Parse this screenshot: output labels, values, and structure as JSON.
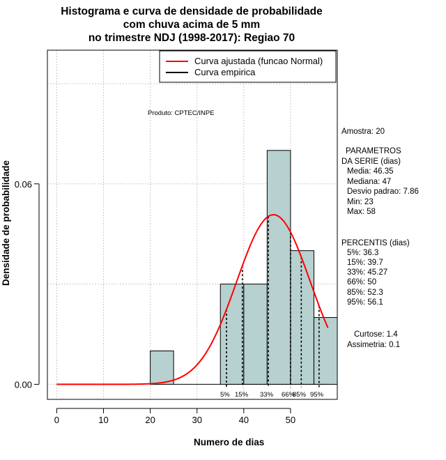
{
  "chart_data": {
    "type": "histogram",
    "title": [
      "Histograma e curva de densidade de probabilidade",
      "com chuva acima de 5 mm",
      "no trimestre NDJ (1998-2017): Regiao 70"
    ],
    "xlabel": "Numero de dias",
    "ylabel": "Densidade de probabilidade",
    "xlim": [
      -2,
      60
    ],
    "ylim": [
      -0.0045,
      0.1
    ],
    "x_ticks": [
      0,
      10,
      20,
      30,
      40,
      50
    ],
    "y_ticks": [
      0.0,
      0.06
    ],
    "y_tick_labels": [
      "0.00",
      "0.06"
    ],
    "grid": true,
    "bins": [
      {
        "from": 20,
        "to": 25,
        "density": 0.01
      },
      {
        "from": 25,
        "to": 30,
        "density": 0.0
      },
      {
        "from": 30,
        "to": 35,
        "density": 0.0
      },
      {
        "from": 35,
        "to": 40,
        "density": 0.03
      },
      {
        "from": 40,
        "to": 45,
        "density": 0.03
      },
      {
        "from": 45,
        "to": 50,
        "density": 0.07
      },
      {
        "from": 50,
        "to": 55,
        "density": 0.04
      },
      {
        "from": 55,
        "to": 60,
        "density": 0.02
      }
    ],
    "fitted_curve": {
      "name": "Curva ajustada (funcao Normal)",
      "color": "#ff0000",
      "distribution": "normal",
      "mean": 46.35,
      "sd": 7.86,
      "x_range": [
        0,
        58
      ]
    },
    "empirical_curve": {
      "name": "Curva empirica",
      "color": "#000000"
    },
    "percentile_lines": [
      {
        "label": "5%",
        "x": 36.3
      },
      {
        "label": "15%",
        "x": 39.7
      },
      {
        "label": "33%",
        "x": 45.27
      },
      {
        "label": "66%",
        "x": 50
      },
      {
        "label": "85%",
        "x": 52.3
      },
      {
        "label": "95%",
        "x": 56.1
      }
    ],
    "bar_color": "#b7d0d0",
    "annotation": "Produto: CPTEC/INPE",
    "legend_position": "top-right"
  },
  "stats": {
    "amostra": "Amostra: 20",
    "parametros_title_1": "PARAMETROS",
    "parametros_title_2": "DA SERIE (dias)",
    "media": "Media: 46.35",
    "mediana": "Mediana: 47",
    "desvio": "Desvio padrao: 7.86",
    "min": "Min: 23",
    "max": "Max: 58",
    "percentis_title": "PERCENTIS (dias)",
    "p5": "5%: 36.3",
    "p15": "15%: 39.7",
    "p33": "33%: 45.27",
    "p66": "66%: 50",
    "p85": "85%: 52.3",
    "p95": "95%: 56.1",
    "curtose": "Curtose: 1.4",
    "assimetria": "Assimetria: 0.1"
  }
}
